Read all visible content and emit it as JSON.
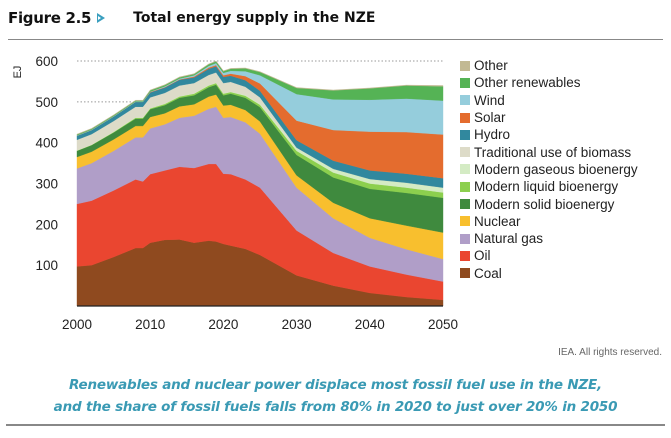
{
  "header": {
    "figure_number": "Figure 2.5",
    "arrow_icon": "triangle-right-icon",
    "title": "Total energy supply in the NZE"
  },
  "credit": "IEA. All rights reserved.",
  "caption": {
    "line1": "Renewables and nuclear power displace most fossil fuel use in the NZE,",
    "line2": "and the share of fossil fuels falls from 80% in 2020 to just over 20% in 2050"
  },
  "chart_data": {
    "type": "area",
    "stacked": true,
    "title": "Total energy supply in the NZE",
    "xlabel": "",
    "ylabel": "EJ",
    "xlim": [
      2000,
      2050
    ],
    "ylim": [
      0,
      600
    ],
    "x_ticks": [
      2000,
      2010,
      2020,
      2030,
      2040,
      2050
    ],
    "y_ticks": [
      100,
      200,
      300,
      400,
      500,
      600
    ],
    "y_tick_labels": [
      "100",
      "200",
      "300",
      "400",
      "500",
      "600"
    ],
    "x_tick_labels": [
      "2000",
      "2010",
      "2020",
      "2030",
      "2040",
      "2050"
    ],
    "grid": "dotted horizontal at 500 and 600",
    "legend_position": "right",
    "x": [
      2000,
      2002,
      2005,
      2008,
      2009,
      2010,
      2012,
      2014,
      2016,
      2018,
      2019,
      2020,
      2021,
      2023,
      2025,
      2030,
      2035,
      2040,
      2045,
      2050
    ],
    "series": [
      {
        "name": "Coal",
        "color": "#8f4a1f",
        "values": [
          97,
          100,
          120,
          142,
          142,
          155,
          162,
          163,
          155,
          160,
          158,
          152,
          148,
          140,
          125,
          75,
          50,
          32,
          22,
          15
        ]
      },
      {
        "name": "Oil",
        "color": "#ea4630",
        "values": [
          153,
          158,
          163,
          168,
          163,
          168,
          170,
          178,
          183,
          188,
          190,
          172,
          175,
          170,
          165,
          110,
          80,
          65,
          55,
          45
        ]
      },
      {
        "name": "Natural gas",
        "color": "#b09ec8",
        "values": [
          87,
          92,
          97,
          103,
          108,
          112,
          113,
          120,
          128,
          135,
          140,
          137,
          140,
          140,
          132,
          105,
          85,
          70,
          62,
          55
        ]
      },
      {
        "name": "Nuclear",
        "color": "#f8bf2e",
        "values": [
          28,
          28,
          28,
          28,
          28,
          28,
          27,
          28,
          28,
          30,
          30,
          30,
          30,
          30,
          30,
          30,
          38,
          48,
          58,
          65
        ]
      },
      {
        "name": "Modern solid bioenergy",
        "color": "#3f8a3e",
        "values": [
          15,
          16,
          17,
          18,
          18,
          19,
          20,
          21,
          22,
          23,
          24,
          25,
          27,
          30,
          35,
          50,
          62,
          72,
          80,
          85
        ]
      },
      {
        "name": "Modern liquid bioenergy",
        "color": "#8ccf4e",
        "values": [
          1,
          1,
          1,
          2,
          2,
          2,
          3,
          3,
          4,
          4,
          4,
          4,
          4,
          5,
          6,
          10,
          12,
          13,
          13,
          13
        ]
      },
      {
        "name": "Modern gaseous bioenergy",
        "color": "#d4ebc4",
        "values": [
          0,
          0,
          1,
          1,
          1,
          1,
          1,
          1,
          1,
          1,
          1,
          1,
          1,
          2,
          3,
          6,
          9,
          11,
          12,
          12
        ]
      },
      {
        "name": "Traditional use of biomass",
        "color": "#dddbc8",
        "values": [
          26,
          26,
          26,
          26,
          26,
          26,
          26,
          26,
          25,
          25,
          25,
          25,
          24,
          20,
          15,
          2,
          0,
          0,
          0,
          0
        ]
      },
      {
        "name": "Hydro",
        "color": "#31889e",
        "values": [
          10,
          10,
          11,
          12,
          12,
          12,
          13,
          14,
          14,
          15,
          15,
          15,
          15,
          16,
          16,
          18,
          20,
          21,
          22,
          23
        ]
      },
      {
        "name": "Solar",
        "color": "#e46c2e",
        "values": [
          0,
          0,
          0,
          0,
          0,
          1,
          1,
          1,
          2,
          3,
          3,
          4,
          5,
          10,
          18,
          48,
          75,
          95,
          102,
          107
        ]
      },
      {
        "name": "Wind",
        "color": "#95cddc",
        "values": [
          1,
          1,
          1,
          1,
          1,
          1,
          2,
          2,
          3,
          4,
          5,
          6,
          7,
          12,
          20,
          65,
          75,
          78,
          82,
          83
        ]
      },
      {
        "name": "Other renewables",
        "color": "#55b355",
        "values": [
          2,
          2,
          2,
          2,
          2,
          3,
          3,
          3,
          3,
          4,
          4,
          4,
          5,
          7,
          8,
          15,
          22,
          28,
          32,
          35
        ]
      },
      {
        "name": "Other",
        "color": "#c2b993",
        "values": [
          1,
          1,
          1,
          1,
          1,
          1,
          1,
          1,
          1,
          1,
          1,
          1,
          1,
          1,
          1,
          1,
          1,
          1,
          1,
          2
        ]
      }
    ],
    "legend_order": [
      "Other",
      "Other renewables",
      "Wind",
      "Solar",
      "Hydro",
      "Traditional use of biomass",
      "Modern gaseous bioenergy",
      "Modern liquid bioenergy",
      "Modern solid bioenergy",
      "Nuclear",
      "Natural gas",
      "Oil",
      "Coal"
    ]
  }
}
